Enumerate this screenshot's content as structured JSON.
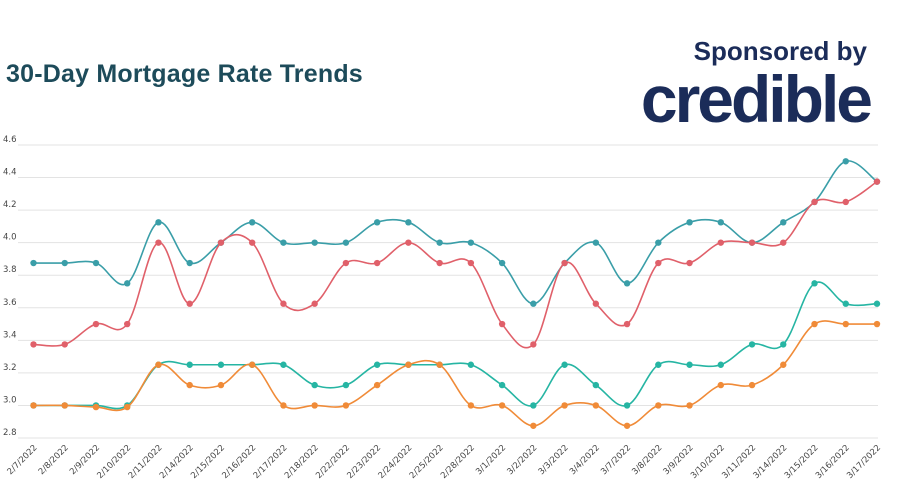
{
  "header": {
    "title": "30-Day Mortgage Rate Trends",
    "sponsor_text": "Sponsored by",
    "brand_name": "credible"
  },
  "chart_data": {
    "type": "line",
    "title": "30-Day Mortgage Rate Trends",
    "xlabel": "",
    "ylabel": "",
    "ylim": [
      2.8,
      4.6
    ],
    "yticks": [
      2.8,
      3.0,
      3.2,
      3.4,
      3.6,
      3.8,
      4.0,
      4.2,
      4.4,
      4.6
    ],
    "grid": true,
    "categories": [
      "2/7/2022",
      "2/8/2022",
      "2/9/2022",
      "2/10/2022",
      "2/11/2022",
      "2/14/2022",
      "2/15/2022",
      "2/16/2022",
      "2/17/2022",
      "2/18/2022",
      "2/22/2022",
      "2/23/2022",
      "2/24/2022",
      "2/25/2022",
      "2/28/2022",
      "3/1/2022",
      "3/2/2022",
      "3/3/2022",
      "3/4/2022",
      "3/7/2022",
      "3/8/2022",
      "3/9/2022",
      "3/10/2022",
      "3/11/2022",
      "3/14/2022",
      "3/15/2022",
      "3/16/2022",
      "3/17/2022"
    ],
    "series": [
      {
        "color": "#3a9ea8",
        "values": [
          3.875,
          3.875,
          3.875,
          3.75,
          4.125,
          3.875,
          4.0,
          4.125,
          4.0,
          4.0,
          4.0,
          4.125,
          4.125,
          4.0,
          4.0,
          3.875,
          3.625,
          3.875,
          4.0,
          3.75,
          4.0,
          4.125,
          4.125,
          4.0,
          4.125,
          4.25,
          4.5,
          4.375
        ]
      },
      {
        "color": "#e0606a",
        "values": [
          3.375,
          3.375,
          3.5,
          3.5,
          4.0,
          3.625,
          4.0,
          4.0,
          3.625,
          3.625,
          3.875,
          3.875,
          4.0,
          3.875,
          3.875,
          3.5,
          3.375,
          3.875,
          3.625,
          3.5,
          3.875,
          3.875,
          4.0,
          4.0,
          4.0,
          4.25,
          4.25,
          4.375
        ]
      },
      {
        "color": "#26b5a3",
        "values": [
          3.0,
          3.0,
          3.0,
          3.0,
          3.25,
          3.25,
          3.25,
          3.25,
          3.25,
          3.125,
          3.125,
          3.25,
          3.25,
          3.25,
          3.25,
          3.125,
          3.0,
          3.25,
          3.125,
          3.0,
          3.25,
          3.25,
          3.25,
          3.375,
          3.375,
          3.75,
          3.625,
          3.625
        ]
      },
      {
        "color": "#f08b38",
        "values": [
          3.0,
          3.0,
          2.99,
          2.99,
          3.25,
          3.125,
          3.125,
          3.25,
          3.0,
          3.0,
          3.0,
          3.125,
          3.25,
          3.25,
          3.0,
          3.0,
          2.875,
          3.0,
          3.0,
          2.875,
          3.0,
          3.0,
          3.125,
          3.125,
          3.25,
          3.5,
          3.5,
          3.5
        ]
      }
    ]
  }
}
